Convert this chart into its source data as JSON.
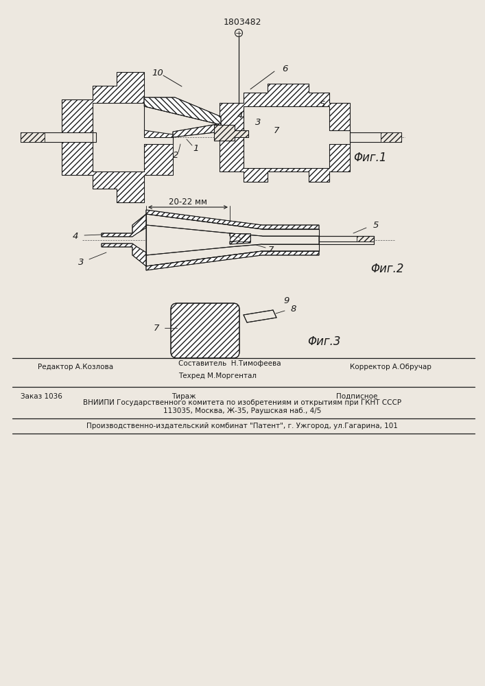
{
  "bg_color": "#ede8e0",
  "line_color": "#1a1a1a",
  "patent_number": "1803482",
  "fig1_label": "Φиг.1",
  "fig2_label": "Φиг.2",
  "fig3_label": "Φиг.3",
  "dim_label": "20-22 мм",
  "label_10": "10",
  "label_6": "6",
  "label_5": "5",
  "label_7": "7",
  "label_4": "4",
  "label_3": "3",
  "label_1": "1",
  "label_2": "2",
  "label_8": "8",
  "label_9": "9",
  "editor": "Редактор А.Козлова",
  "composer": "Составитель  Н.Тимофеева",
  "techred": "Техред М.Моргентал",
  "corrector": "Корректор А.Обручар",
  "order_text": "Заказ 1036",
  "tirazh": "Тираж",
  "podpisnoe": "Подписное",
  "vniiipi_1": "ВНИИПИ Государственного комитета по изобретениям и открытиям при ГКНТ СССР",
  "vniiipi_2": "113035, Москва, Ж-35, Раушская наб., 4/5",
  "plant": "Производственно-издательский комбинат \"Патент\", г. Ужгород, ул.Гагарина, 101"
}
